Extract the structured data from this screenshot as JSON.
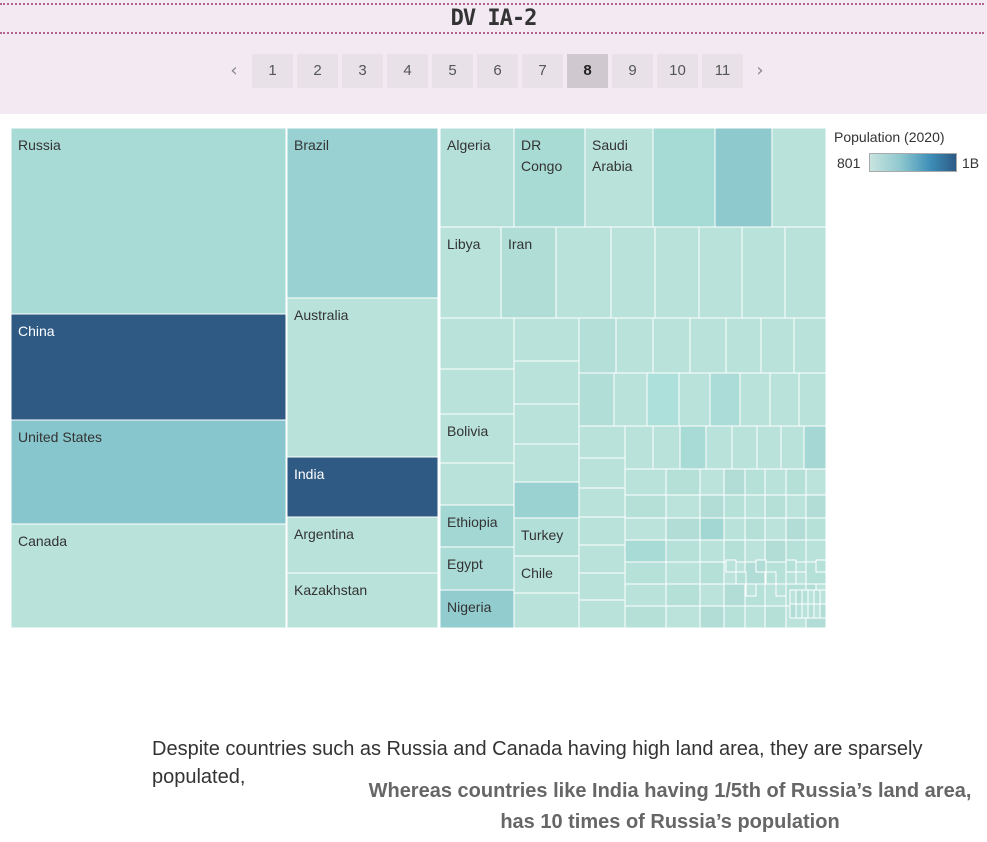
{
  "header": {
    "title": "DV IA-2"
  },
  "pager": {
    "prev_icon": "chevron-left-icon",
    "next_icon": "chevron-right-icon",
    "prev_glyph": "‹",
    "next_glyph": "›",
    "pages": [
      "1",
      "2",
      "3",
      "4",
      "5",
      "6",
      "7",
      "8",
      "9",
      "10",
      "11"
    ],
    "active": "8"
  },
  "legend": {
    "title": "Population (2020)",
    "min_label": "801",
    "max_label": "1B"
  },
  "captions": {
    "line1": "Despite countries such as Russia and Canada having high land area, they are sparsely populated,",
    "line2": "Whereas countries like India having 1/5th of Russia’s land area, has 10 times of Russia’s population"
  },
  "colors": {
    "light": "#b8e2da",
    "mid": "#8ec9cd",
    "dark": "#2e5a84",
    "header_bg": "#f2e9f2",
    "title_border": "#b5648f"
  },
  "chart_data": {
    "type": "treemap",
    "size_measure": "Land area",
    "color_measure": "Population (2020)",
    "labeled_cells": [
      {
        "name": "Russia",
        "population": 145934462
      },
      {
        "name": "China",
        "population": 1439323776
      },
      {
        "name": "United States",
        "population": 331002651
      },
      {
        "name": "Canada",
        "population": 37742154
      },
      {
        "name": "Brazil",
        "population": 212559417
      },
      {
        "name": "Australia",
        "population": 25499884
      },
      {
        "name": "India",
        "population": 1380004385
      },
      {
        "name": "Argentina",
        "population": 45195774
      },
      {
        "name": "Kazakhstan",
        "population": 18776707
      },
      {
        "name": "Algeria",
        "population": 43851044
      },
      {
        "name": "DR Congo",
        "population": 89561403
      },
      {
        "name": "Saudi Arabia",
        "population": 34813871
      },
      {
        "name": "Libya",
        "population": 6871292
      },
      {
        "name": "Iran",
        "population": 83992949
      },
      {
        "name": "Bolivia",
        "population": 11673021
      },
      {
        "name": "Ethiopia",
        "population": 114963588
      },
      {
        "name": "Egypt",
        "population": 102334404
      },
      {
        "name": "Nigeria",
        "population": 206139589
      },
      {
        "name": "Turkey",
        "population": 84339067
      },
      {
        "name": "Chile",
        "population": 19116201
      }
    ]
  }
}
